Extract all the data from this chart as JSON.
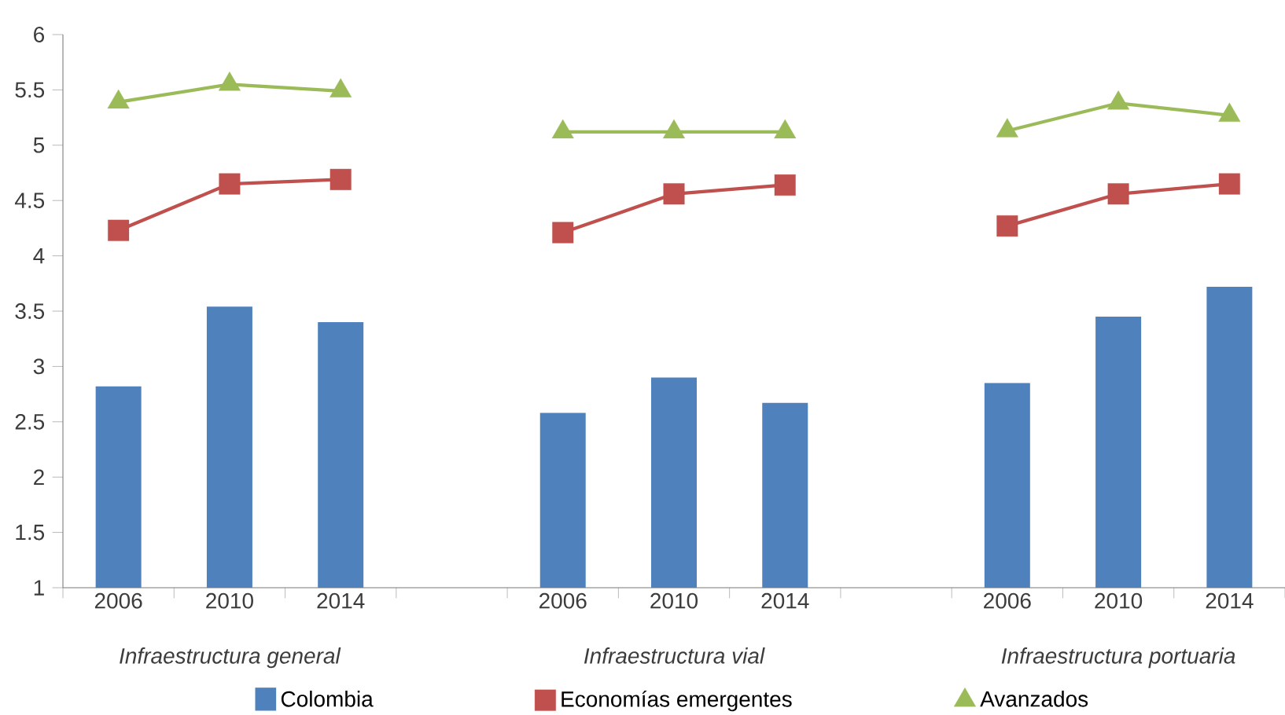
{
  "chart_data": {
    "type": "bar",
    "categories": [
      "2006",
      "2010",
      "2014",
      null,
      "2006",
      "2010",
      "2014",
      null,
      "2006",
      "2010",
      "2014"
    ],
    "series": [
      {
        "name": "Colombia",
        "color": "#4f81bd",
        "values": [
          2.82,
          3.54,
          3.4,
          null,
          2.58,
          2.9,
          2.67,
          null,
          2.85,
          3.45,
          3.72
        ]
      },
      {
        "name": "Economías emergentes",
        "type": "line",
        "color": "#c0504d",
        "marker": "square",
        "values": [
          4.23,
          4.65,
          4.69,
          null,
          4.21,
          4.56,
          4.64,
          null,
          4.27,
          4.56,
          4.65
        ]
      },
      {
        "name": "Avanzados",
        "type": "line",
        "color": "#9bbb59",
        "marker": "triangle",
        "values": [
          5.39,
          5.55,
          5.49,
          null,
          5.12,
          5.12,
          5.12,
          null,
          5.13,
          5.38,
          5.27
        ]
      }
    ],
    "ylim": [
      1,
      6
    ],
    "yticks": [
      1,
      1.5,
      2,
      2.5,
      3,
      3.5,
      4,
      4.5,
      5,
      5.5,
      6
    ],
    "legend": "bottom",
    "grid": false,
    "annotations": [
      "Infraestructura general",
      "Infraestructura vial",
      "Infraestructura portuaria"
    ]
  }
}
